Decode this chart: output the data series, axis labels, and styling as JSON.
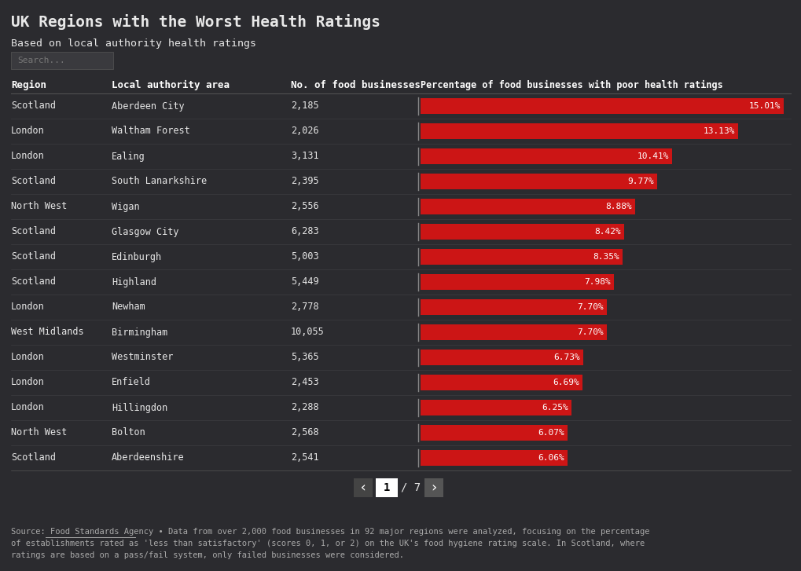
{
  "title": "UK Regions with the Worst Health Ratings",
  "subtitle": "Based on local authority health ratings",
  "search_placeholder": "Search...",
  "bg_color": "#2b2b2f",
  "text_color": "#e8e8e8",
  "bar_color": "#cc1515",
  "header_color": "#ffffff",
  "col_headers": [
    "Region",
    "Local authority area",
    "No. of food businesses",
    "Percentage of food businesses with poor health ratings"
  ],
  "rows": [
    [
      "Scotland",
      "Aberdeen City",
      "2,185",
      15.01
    ],
    [
      "London",
      "Waltham Forest",
      "2,026",
      13.13
    ],
    [
      "London",
      "Ealing",
      "3,131",
      10.41
    ],
    [
      "Scotland",
      "South Lanarkshire",
      "2,395",
      9.77
    ],
    [
      "North West",
      "Wigan",
      "2,556",
      8.88
    ],
    [
      "Scotland",
      "Glasgow City",
      "6,283",
      8.42
    ],
    [
      "Scotland",
      "Edinburgh",
      "5,003",
      8.35
    ],
    [
      "Scotland",
      "Highland",
      "5,449",
      7.98
    ],
    [
      "London",
      "Newham",
      "2,778",
      7.7
    ],
    [
      "West Midlands",
      "Birmingham",
      "10,055",
      7.7
    ],
    [
      "London",
      "Westminster",
      "5,365",
      6.73
    ],
    [
      "London",
      "Enfield",
      "2,453",
      6.69
    ],
    [
      "London",
      "Hillingdon",
      "2,288",
      6.25
    ],
    [
      "North West",
      "Bolton",
      "2,568",
      6.07
    ],
    [
      "Scotland",
      "Aberdeenshire",
      "2,541",
      6.06
    ]
  ],
  "max_bar_value": 15.01,
  "footer_line1": "Source: Food Standards Agency • Data from over 2,000 food businesses in 92 major regions were analyzed, focusing on the percentage",
  "footer_line2": "of establishments rated as 'less than satisfactory' (scores 0, 1, or 2) on the UK's food hygiene rating scale. In Scotland, where",
  "footer_line3": "ratings are based on a pass/fail system, only failed businesses were considered."
}
